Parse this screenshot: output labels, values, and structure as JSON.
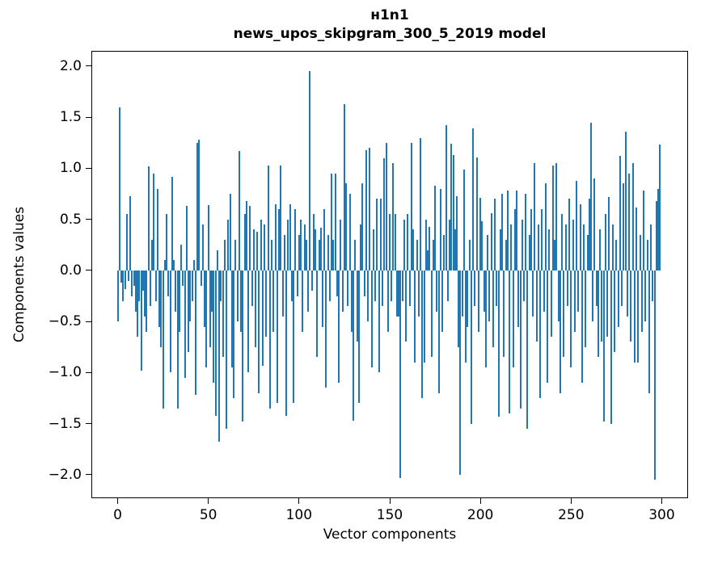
{
  "title": {
    "line1": "н1n1",
    "line2": "news_upos_skipgram_300_5_2019 model"
  },
  "chart_data": {
    "type": "bar",
    "title": "н1n1",
    "subtitle": "news_upos_skipgram_300_5_2019 model",
    "xlabel": "Vector components",
    "ylabel": "Components values",
    "bar_color": "#1f77b4",
    "grid": false,
    "legend": "none",
    "n_components": 300,
    "x_start": 0,
    "xlim": [
      -14.5,
      314.5
    ],
    "ylim": [
      -2.23,
      2.15
    ],
    "x_tick_values": [
      0,
      50,
      100,
      150,
      200,
      250,
      300
    ],
    "x_tick_labels": [
      "0",
      "50",
      "100",
      "150",
      "200",
      "250",
      "300"
    ],
    "y_tick_values": [
      2.0,
      1.5,
      1.0,
      0.5,
      0.0,
      -0.5,
      -1.0,
      -1.5,
      -2.0
    ],
    "y_tick_labels": [
      "2.0",
      "1.5",
      "1.0",
      "0.5",
      "0.0",
      "−0.5",
      "−1.0",
      "−1.5",
      "−2.0"
    ],
    "values": [
      -0.5,
      1.6,
      -0.12,
      -0.3,
      -0.18,
      0.55,
      -0.1,
      0.73,
      -0.25,
      -0.15,
      -0.4,
      -0.65,
      -0.3,
      -0.98,
      -0.2,
      -0.45,
      -0.6,
      1.02,
      -0.35,
      0.3,
      0.95,
      -0.3,
      0.8,
      -0.55,
      -0.75,
      -1.35,
      0.1,
      0.55,
      -0.25,
      -1.0,
      0.92,
      0.1,
      -0.4,
      -1.35,
      -0.6,
      0.25,
      -0.15,
      -1.05,
      0.63,
      -0.8,
      -0.5,
      -0.3,
      0.1,
      -1.22,
      1.25,
      1.28,
      -0.15,
      0.45,
      -0.55,
      -0.95,
      0.64,
      -0.75,
      -0.4,
      -1.1,
      -1.42,
      0.2,
      -1.68,
      -0.3,
      -0.85,
      0.3,
      -1.55,
      0.5,
      0.75,
      -0.95,
      -1.25,
      0.3,
      -0.5,
      1.17,
      -0.6,
      -1.48,
      0.55,
      0.68,
      -1.0,
      0.63,
      -0.35,
      0.4,
      -0.75,
      0.38,
      -1.2,
      0.5,
      -0.93,
      0.45,
      -0.65,
      1.03,
      -1.35,
      0.3,
      -0.6,
      0.65,
      -1.3,
      0.6,
      1.03,
      -0.45,
      0.35,
      -1.42,
      0.5,
      0.65,
      -0.3,
      -1.3,
      0.6,
      -0.25,
      0.35,
      0.5,
      -0.6,
      0.45,
      0.3,
      -0.4,
      1.95,
      -0.2,
      0.55,
      0.4,
      -0.85,
      0.3,
      0.42,
      -0.55,
      0.6,
      -1.15,
      0.35,
      -0.3,
      0.95,
      0.3,
      0.95,
      -0.25,
      -1.1,
      0.5,
      -0.4,
      1.63,
      0.85,
      -0.35,
      0.75,
      -0.6,
      -1.47,
      0.3,
      -0.7,
      -1.3,
      0.45,
      0.85,
      -0.25,
      1.18,
      -0.5,
      1.2,
      -0.95,
      0.4,
      -0.3,
      0.7,
      -1.0,
      0.7,
      -0.35,
      1.1,
      1.25,
      -0.6,
      0.55,
      -0.3,
      1.05,
      0.55,
      -0.45,
      -0.45,
      -2.03,
      -0.3,
      0.5,
      -0.7,
      0.55,
      -0.35,
      1.25,
      0.4,
      -0.9,
      0.3,
      -0.45,
      1.3,
      -1.25,
      -0.9,
      0.5,
      0.2,
      0.43,
      -0.85,
      0.3,
      0.83,
      -0.4,
      -1.2,
      0.8,
      -0.6,
      0.35,
      1.42,
      -0.3,
      0.5,
      1.24,
      1.13,
      0.4,
      0.73,
      -0.75,
      -2.0,
      -0.45,
      0.99,
      -0.9,
      -0.55,
      0.3,
      -1.5,
      1.39,
      -0.35,
      1.11,
      -0.6,
      0.71,
      0.48,
      -0.4,
      -0.95,
      0.35,
      -0.5,
      0.56,
      -0.75,
      0.7,
      -0.35,
      -1.43,
      0.4,
      0.75,
      -0.85,
      0.3,
      0.78,
      -1.4,
      0.45,
      -0.95,
      0.6,
      0.78,
      -0.55,
      -1.35,
      0.5,
      -0.3,
      0.75,
      -1.55,
      0.35,
      0.6,
      -0.45,
      1.05,
      -0.7,
      0.45,
      -1.25,
      0.6,
      -0.4,
      0.85,
      -1.1,
      0.4,
      -0.65,
      1.03,
      0.3,
      1.05,
      -0.5,
      -1.2,
      0.55,
      -0.85,
      0.45,
      -0.35,
      0.7,
      -0.95,
      0.5,
      -0.6,
      0.88,
      -0.4,
      0.65,
      -1.1,
      0.45,
      -0.75,
      0.35,
      0.7,
      1.45,
      -0.5,
      0.9,
      -0.35,
      -0.85,
      0.4,
      -0.7,
      -1.48,
      0.55,
      -0.65,
      0.72,
      -1.5,
      0.45,
      -0.8,
      0.3,
      -0.55,
      1.12,
      -0.35,
      0.85,
      1.36,
      -0.45,
      0.95,
      -0.7,
      1.05,
      -0.9,
      0.62,
      -0.9,
      0.35,
      -0.6,
      0.78,
      -0.5,
      0.3,
      -1.2,
      0.45,
      -0.3,
      -2.05,
      0.68,
      0.8,
      1.23
    ]
  }
}
